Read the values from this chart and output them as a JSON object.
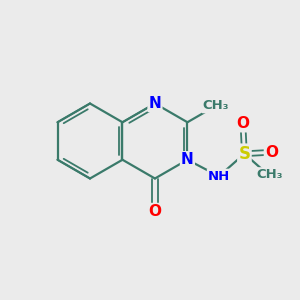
{
  "background_color": "#ebebeb",
  "bond_color": "#3a7a6a",
  "N_color": "#0000ff",
  "O_color": "#ff0000",
  "S_color": "#cccc00",
  "C_color": "#3a7a6a",
  "figsize": [
    3.0,
    3.0
  ],
  "dpi": 100,
  "xlim": [
    0,
    10
  ],
  "ylim": [
    0,
    10
  ],
  "bond_lw": 1.6,
  "double_lw": 1.3,
  "font_size": 11,
  "font_size_small": 9.5
}
